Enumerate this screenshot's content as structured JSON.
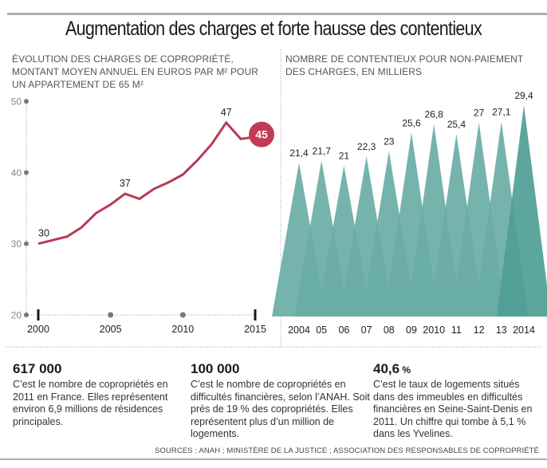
{
  "title": "Augmentation des charges et forte hausse des contentieux",
  "chart_data": [
    {
      "type": "line",
      "title": "Évolution des charges de copropriété, montant moyen annuel en euros par m² pour un appartement de 65 m²",
      "title_lines": [
        "ÉVOLUTION DES CHARGES DE COPROPRIÉTÉ,",
        "MONTANT MOYEN ANNUEL EN EUROS PAR M² POUR",
        "UN APPARTEMENT DE 65 M²"
      ],
      "xlabel": "",
      "ylabel": "",
      "x": [
        2000,
        2001,
        2002,
        2003,
        2004,
        2005,
        2006,
        2007,
        2008,
        2009,
        2010,
        2011,
        2012,
        2013,
        2014,
        2015
      ],
      "series": [
        {
          "name": "Charges (€/m²)",
          "values": [
            30,
            30.5,
            31,
            32.3,
            34.3,
            35.5,
            37,
            36.3,
            37.7,
            38.6,
            39.7,
            41.7,
            44,
            47,
            44.7,
            45
          ],
          "color": "#b83b52"
        }
      ],
      "data_labels": [
        {
          "x": 2000,
          "text": "30"
        },
        {
          "x": 2006,
          "text": "37"
        },
        {
          "x": 2013,
          "text": "47"
        },
        {
          "x": 2015,
          "text": "45",
          "highlight": true
        }
      ],
      "xticks": [
        "2000",
        "2005",
        "2010",
        "2015"
      ],
      "yticks": [
        "20",
        "30",
        "40",
        "50"
      ],
      "xlim": [
        2000,
        2015
      ],
      "ylim": [
        20,
        50
      ],
      "highlight_color": "#c23b54",
      "grid": false
    },
    {
      "type": "bar",
      "title": "Nombre de contentieux pour non-paiement des charges, en milliers",
      "title_lines": [
        "NOMBRE DE CONTENTIEUX POUR NON-PAIEMENT",
        "DES CHARGES, EN MILLIERS"
      ],
      "categories": [
        "2004",
        "05",
        "06",
        "07",
        "08",
        "09",
        "2010",
        "11",
        "12",
        "13",
        "2014"
      ],
      "values": [
        21.4,
        21.7,
        21,
        22.3,
        23,
        25.6,
        26.8,
        25.4,
        27,
        27.1,
        29.4
      ],
      "value_labels": [
        "21,4",
        "21,7",
        "21",
        "22,3",
        "23",
        "25,6",
        "26,8",
        "25,4",
        "27",
        "27,1",
        "29,4"
      ],
      "bar_shape": "triangle",
      "color": "#6aaca6",
      "last_color": "#4f9e95",
      "ylim": [
        0,
        29.4
      ]
    }
  ],
  "stats": [
    {
      "value": "617 000",
      "unit": "",
      "description": "C’est le nombre de copropriétés en 2011 en France. Elles représentent environ 6,9 millions de résidences principales."
    },
    {
      "value": "100 000",
      "unit": "",
      "description": "C’est le nombre de copropriétés en difficultés financières, selon l’ANAH. Soit près de 19 % des copropriétés. Elles représentent plus d’un million de logements."
    },
    {
      "value": "40,6",
      "unit": " %",
      "description": "C’est le taux de logements situés dans des immeubles en difficultés financières en Seine-Saint-Denis en 2011. Un chiffre qui tombe à 5,1 % dans les Yvelines."
    }
  ],
  "source": "SOURCES : ANAH ; MINISTÈRE DE LA JUSTICE ; ASSOCIATION DES RESPONSABLES DE COPROPRIÉTÉ"
}
